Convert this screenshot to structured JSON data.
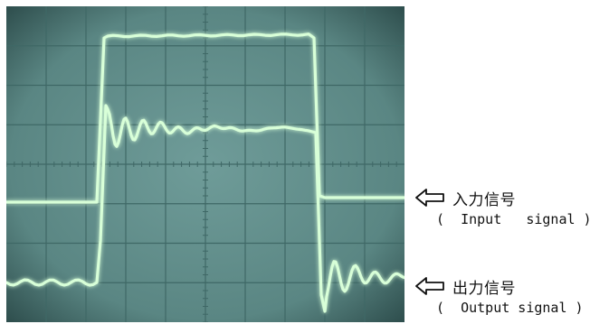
{
  "scope": {
    "screen_color": "#5f8a88",
    "grid_color": "#3f6866",
    "trace_color": "#d8ffd8",
    "glow_color": "#7dffb0"
  },
  "labels": {
    "input": {
      "arrow_icon": "left-arrow-icon",
      "jp": "入力信号",
      "en": "(  Input   signal )"
    },
    "output": {
      "arrow_icon": "left-arrow-icon",
      "jp": "出力信号",
      "en": "(  Output signal )"
    }
  }
}
